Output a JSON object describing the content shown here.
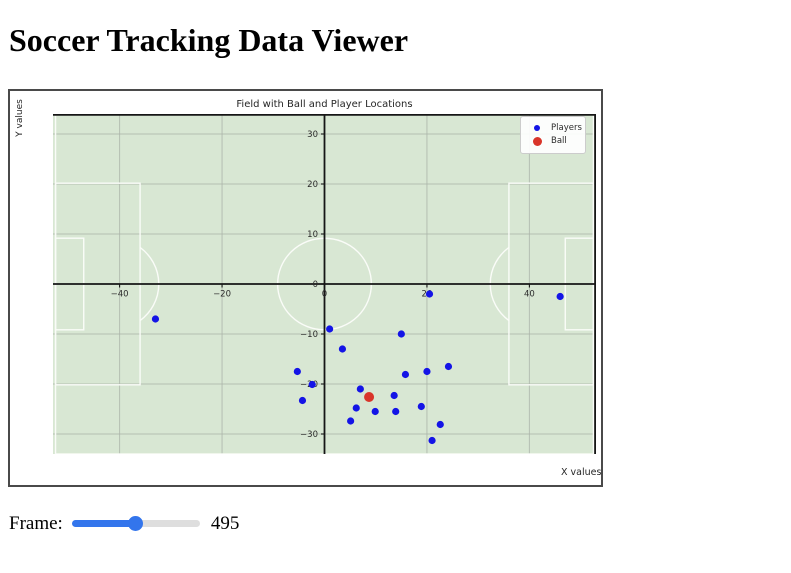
{
  "page": {
    "title": "Soccer Tracking Data Viewer"
  },
  "chart_data": {
    "type": "scatter",
    "title": "Field with Ball and Player Locations",
    "xlabel": "X values",
    "ylabel": "Y values",
    "xlim": [
      -53,
      53
    ],
    "ylim": [
      -34,
      34
    ],
    "x_ticks": [
      -40,
      -20,
      0,
      20,
      40
    ],
    "y_ticks": [
      30,
      20,
      10,
      0,
      -10,
      -20,
      -30
    ],
    "grid": true,
    "legend": {
      "position": "upper-right",
      "entries": [
        {
          "label": "Players",
          "color": "#1414e6"
        },
        {
          "label": "Ball",
          "color": "#d9352a"
        }
      ]
    },
    "series": [
      {
        "name": "Players",
        "color": "#1414e6",
        "marker_radius_px": 3.6,
        "points": [
          [
            -33,
            -7
          ],
          [
            1,
            -9
          ],
          [
            3.5,
            -13
          ],
          [
            20.5,
            -2
          ],
          [
            46,
            -2.5
          ],
          [
            15,
            -10
          ],
          [
            -5.3,
            -17.5
          ],
          [
            -2.4,
            -20.1
          ],
          [
            -4.3,
            -23.3
          ],
          [
            7,
            -21
          ],
          [
            13.6,
            -22.3
          ],
          [
            15.8,
            -18.1
          ],
          [
            20,
            -17.5
          ],
          [
            24.2,
            -16.5
          ],
          [
            6.2,
            -24.8
          ],
          [
            9.9,
            -25.5
          ],
          [
            13.9,
            -25.5
          ],
          [
            18.9,
            -24.5
          ],
          [
            5.1,
            -27.4
          ],
          [
            22.6,
            -28.1
          ],
          [
            21,
            -31.3
          ]
        ]
      },
      {
        "name": "Ball",
        "color": "#d9352a",
        "marker_radius_px": 5,
        "points": [
          [
            8.7,
            -22.6
          ]
        ]
      }
    ],
    "field": {
      "fill": "#d8e7d3",
      "line_color": "#fafcf8",
      "half_length": 52.5,
      "half_width": 34,
      "penalty_area_depth": 16.5,
      "penalty_area_half_width": 20.16,
      "goal_area_depth": 5.5,
      "goal_area_half_width": 9.16,
      "center_circle_radius": 9.15,
      "penalty_spot_distance": 11,
      "arc_radius": 9.15
    },
    "colors": {
      "grid": "#a9b2a7",
      "spine": "#161616",
      "tick_label": "#2b2b2b"
    }
  },
  "frame_control": {
    "label": "Frame:",
    "min": 0,
    "max": 1000,
    "value": 495,
    "display_value": "495"
  }
}
